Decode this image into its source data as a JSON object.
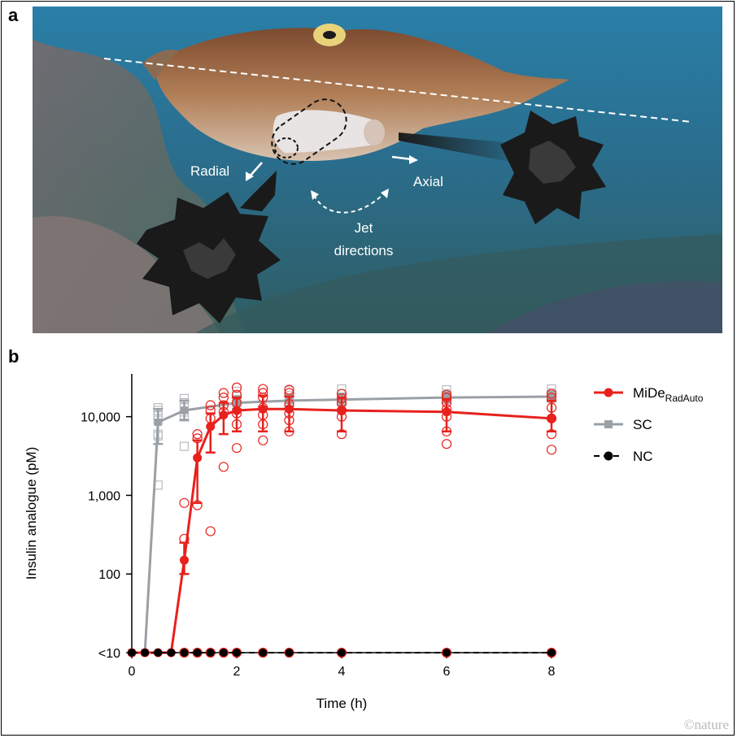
{
  "panels": {
    "a": "a",
    "b": "b"
  },
  "photo": {
    "labels": {
      "radial": "Radial",
      "axial": "Axial",
      "jet_line1": "Jet",
      "jet_line2": "directions"
    },
    "colors": {
      "water_top": "#1f6f9a",
      "water_bottom": "#274f5c",
      "ink": "#1a1a1a",
      "body": "#a8724a"
    }
  },
  "watermark": "©nature",
  "chart_data": {
    "type": "line",
    "xlabel": "Time (h)",
    "ylabel": "Insulin analogue (pM)",
    "x_ticks": [
      0,
      2,
      4,
      6,
      8
    ],
    "xlim": [
      0,
      8
    ],
    "yscale": "log",
    "ylim": [
      10,
      35000
    ],
    "y_ticks": [
      {
        "value": 10,
        "label": "<10"
      },
      {
        "value": 100,
        "label": "100"
      },
      {
        "value": 1000,
        "label": "1,000"
      },
      {
        "value": 10000,
        "label": "10,000"
      }
    ],
    "legend_position": "right",
    "series": [
      {
        "name": "MiDe",
        "name_sub": "RadAuto",
        "color": "#e8211d",
        "marker": "circle",
        "line": "solid",
        "x": [
          0,
          0.25,
          0.5,
          0.75,
          1.0,
          1.25,
          1.5,
          1.75,
          2.0,
          2.5,
          3.0,
          4.0,
          6.0,
          8.0
        ],
        "y": [
          10,
          10,
          10,
          10,
          150,
          3000,
          7500,
          10500,
          12000,
          12500,
          12500,
          12000,
          11500,
          9500
        ],
        "err_low": [
          null,
          null,
          null,
          null,
          100,
          800,
          3500,
          6000,
          6500,
          6500,
          6500,
          6500,
          6500,
          6500
        ],
        "err_high": [
          null,
          null,
          null,
          null,
          250,
          5000,
          11000,
          15000,
          17500,
          18500,
          18000,
          17500,
          16500,
          16000
        ],
        "points": [
          [
            1.0,
            800
          ],
          [
            1.0,
            280
          ],
          [
            1.0,
            10
          ],
          [
            1.25,
            6000
          ],
          [
            1.25,
            5300
          ],
          [
            1.25,
            750
          ],
          [
            1.25,
            10
          ],
          [
            1.5,
            14000
          ],
          [
            1.5,
            12000
          ],
          [
            1.5,
            9500
          ],
          [
            1.5,
            350
          ],
          [
            1.5,
            10
          ],
          [
            1.75,
            20000
          ],
          [
            1.75,
            17500
          ],
          [
            1.75,
            14000
          ],
          [
            1.75,
            11500
          ],
          [
            1.75,
            2300
          ],
          [
            1.75,
            10
          ],
          [
            2.0,
            23500
          ],
          [
            2.0,
            19000
          ],
          [
            2.0,
            15000
          ],
          [
            2.0,
            11000
          ],
          [
            2.0,
            8000
          ],
          [
            2.0,
            4000
          ],
          [
            2.0,
            10
          ],
          [
            2.5,
            22500
          ],
          [
            2.5,
            20000
          ],
          [
            2.5,
            17500
          ],
          [
            2.5,
            13000
          ],
          [
            2.5,
            10500
          ],
          [
            2.5,
            8000
          ],
          [
            2.5,
            5000
          ],
          [
            2.5,
            10
          ],
          [
            3.0,
            22000
          ],
          [
            3.0,
            20000
          ],
          [
            3.0,
            14500
          ],
          [
            3.0,
            11000
          ],
          [
            3.0,
            9000
          ],
          [
            3.0,
            6500
          ],
          [
            3.0,
            10
          ],
          [
            4.0,
            19500
          ],
          [
            4.0,
            17000
          ],
          [
            4.0,
            15000
          ],
          [
            4.0,
            12000
          ],
          [
            4.0,
            10000
          ],
          [
            4.0,
            6000
          ],
          [
            4.0,
            10
          ],
          [
            6.0,
            19000
          ],
          [
            6.0,
            17500
          ],
          [
            6.0,
            15000
          ],
          [
            6.0,
            12500
          ],
          [
            6.0,
            10000
          ],
          [
            6.0,
            6500
          ],
          [
            6.0,
            4500
          ],
          [
            6.0,
            10
          ],
          [
            8.0,
            19500
          ],
          [
            8.0,
            17500
          ],
          [
            8.0,
            13000
          ],
          [
            8.0,
            9500
          ],
          [
            8.0,
            6000
          ],
          [
            8.0,
            3800
          ],
          [
            8.0,
            10
          ]
        ]
      },
      {
        "name": "SC",
        "color": "#9aa0a6",
        "marker": "square",
        "line": "solid",
        "x": [
          0,
          0.25,
          0.5,
          1.0,
          2.0,
          3.0,
          4.0,
          6.0,
          8.0
        ],
        "y": [
          10,
          10,
          8500,
          12000,
          15000,
          16000,
          16500,
          17500,
          18000
        ],
        "err_low": [
          null,
          null,
          4500,
          9000,
          12500,
          13500,
          14000,
          15000,
          15500
        ],
        "err_high": [
          null,
          null,
          12500,
          16000,
          18000,
          19000,
          19500,
          20500,
          21000
        ],
        "points": [
          [
            0.5,
            13000
          ],
          [
            0.5,
            12000
          ],
          [
            0.5,
            10500
          ],
          [
            0.5,
            9000
          ],
          [
            0.5,
            6000
          ],
          [
            0.5,
            5700
          ],
          [
            0.5,
            1350
          ],
          [
            1.0,
            17000
          ],
          [
            1.0,
            15000
          ],
          [
            1.0,
            13000
          ],
          [
            1.0,
            11500
          ],
          [
            1.0,
            10500
          ],
          [
            1.0,
            4200
          ],
          [
            2.0,
            21000
          ],
          [
            2.0,
            18000
          ],
          [
            2.0,
            15000
          ],
          [
            3.0,
            21500
          ],
          [
            3.0,
            18500
          ],
          [
            3.0,
            15500
          ],
          [
            4.0,
            22500
          ],
          [
            4.0,
            19500
          ],
          [
            4.0,
            16500
          ],
          [
            6.0,
            22000
          ],
          [
            6.0,
            19500
          ],
          [
            6.0,
            17000
          ],
          [
            8.0,
            22500
          ],
          [
            8.0,
            20000
          ],
          [
            8.0,
            17500
          ]
        ]
      },
      {
        "name": "NC",
        "color": "#000000",
        "marker": "circle",
        "line": "dashed",
        "x": [
          0,
          0.25,
          0.5,
          0.75,
          1.0,
          1.25,
          1.5,
          1.75,
          2.0,
          2.5,
          3.0,
          4.0,
          6.0,
          8.0
        ],
        "y": [
          10,
          10,
          10,
          10,
          10,
          10,
          10,
          10,
          10,
          10,
          10,
          10,
          10,
          10
        ]
      }
    ]
  }
}
